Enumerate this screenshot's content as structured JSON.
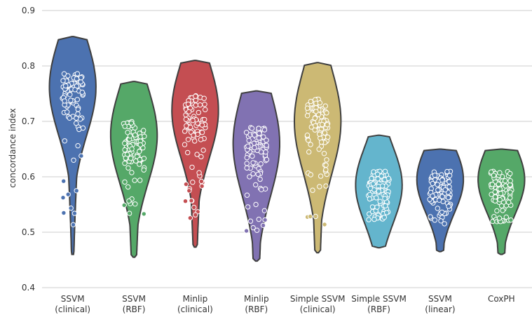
{
  "chart_data": {
    "type": "violin",
    "xlabel": "",
    "ylabel": "concordance index",
    "ylim": [
      0.4,
      0.9
    ],
    "yticks": [
      "0.4",
      "0.5",
      "0.6",
      "0.7",
      "0.8",
      "0.9"
    ],
    "grid": "horizontal",
    "categories": [
      {
        "line1": "SSVM",
        "line2": "(clinical)",
        "color": "#4c72b0",
        "min": 0.46,
        "max": 0.853,
        "median": 0.762,
        "q1": 0.7,
        "q3": 0.79
      },
      {
        "line1": "SSVM",
        "line2": "(RBF)",
        "color": "#55a868",
        "min": 0.455,
        "max": 0.772,
        "median": 0.675,
        "q1": 0.61,
        "q3": 0.7
      },
      {
        "line1": "Minlip",
        "line2": "(clinical)",
        "color": "#c44e52",
        "min": 0.473,
        "max": 0.81,
        "median": 0.72,
        "q1": 0.66,
        "q3": 0.75
      },
      {
        "line1": "Minlip",
        "line2": "(RBF)",
        "color": "#8172b2",
        "min": 0.448,
        "max": 0.755,
        "median": 0.66,
        "q1": 0.59,
        "q3": 0.69
      },
      {
        "line1": "Simple SSVM",
        "line2": "(clinical)",
        "color": "#ccb974",
        "min": 0.463,
        "max": 0.806,
        "median": 0.7,
        "q1": 0.64,
        "q3": 0.74
      },
      {
        "line1": "Simple SSVM",
        "line2": "(RBF)",
        "color": "#64b5cd",
        "min": 0.472,
        "max": 0.675,
        "median": 0.585,
        "q1": 0.54,
        "q3": 0.61
      },
      {
        "line1": "SSVM",
        "line2": "(linear)",
        "color": "#4c72b0",
        "min": 0.465,
        "max": 0.65,
        "median": 0.595,
        "q1": 0.55,
        "q3": 0.61
      },
      {
        "line1": "CoxPH",
        "line2": "",
        "color": "#55a868",
        "min": 0.46,
        "max": 0.65,
        "median": 0.595,
        "q1": 0.55,
        "q3": 0.61
      }
    ]
  }
}
